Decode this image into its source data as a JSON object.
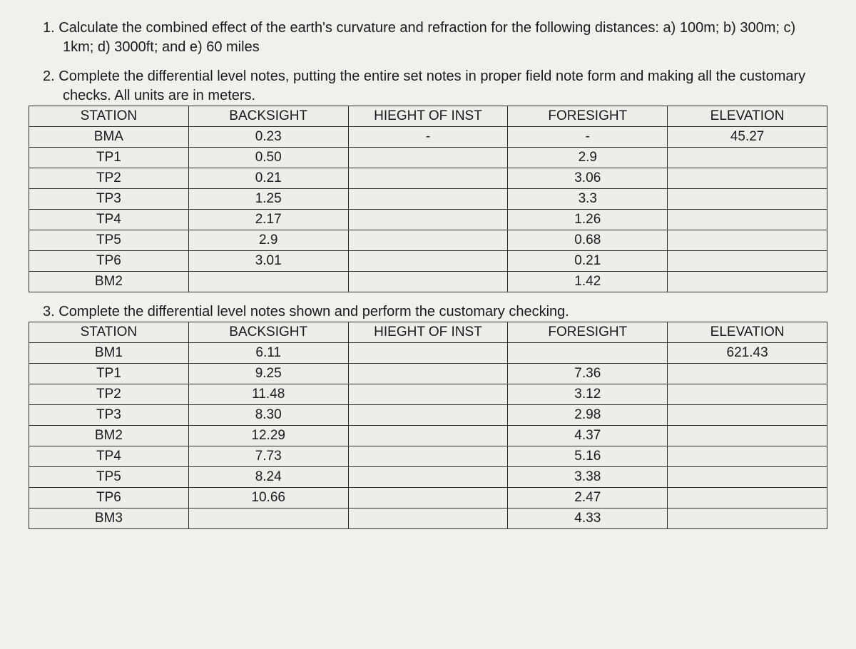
{
  "q1": {
    "num": "1.",
    "text": "Calculate the combined effect of the earth's curvature and refraction for the following distances: a) 100m; b) 300m; c) 1km; d) 3000ft; and e) 60 miles"
  },
  "q2": {
    "num": "2.",
    "text": "Complete the differential level notes, putting the entire set notes in proper field note form and making all the customary checks. All units are in meters."
  },
  "q3": {
    "num": "3.",
    "text": "Complete the differential level notes shown and perform the customary checking."
  },
  "headers": {
    "station": "STATION",
    "backsight": "BACKSIGHT",
    "hi": "HIEGHT OF INST",
    "foresight": "FORESIGHT",
    "elevation": "ELEVATION"
  },
  "table2": {
    "rows": [
      {
        "station": "BMA",
        "bs": "0.23",
        "hi": "-",
        "fs": "-",
        "el": "45.27"
      },
      {
        "station": "TP1",
        "bs": "0.50",
        "hi": "",
        "fs": "2.9",
        "el": ""
      },
      {
        "station": "TP2",
        "bs": "0.21",
        "hi": "",
        "fs": "3.06",
        "el": ""
      },
      {
        "station": "TP3",
        "bs": "1.25",
        "hi": "",
        "fs": "3.3",
        "el": ""
      },
      {
        "station": "TP4",
        "bs": "2.17",
        "hi": "",
        "fs": "1.26",
        "el": ""
      },
      {
        "station": "TP5",
        "bs": "2.9",
        "hi": "",
        "fs": "0.68",
        "el": ""
      },
      {
        "station": "TP6",
        "bs": "3.01",
        "hi": "",
        "fs": "0.21",
        "el": ""
      },
      {
        "station": "BM2",
        "bs": "",
        "hi": "",
        "fs": "1.42",
        "el": ""
      }
    ]
  },
  "table3": {
    "rows": [
      {
        "station": "BM1",
        "bs": "6.11",
        "hi": "",
        "fs": "",
        "el": "621.43"
      },
      {
        "station": "TP1",
        "bs": "9.25",
        "hi": "",
        "fs": "7.36",
        "el": ""
      },
      {
        "station": "TP2",
        "bs": "11.48",
        "hi": "",
        "fs": "3.12",
        "el": ""
      },
      {
        "station": "TP3",
        "bs": "8.30",
        "hi": "",
        "fs": "2.98",
        "el": ""
      },
      {
        "station": "BM2",
        "bs": "12.29",
        "hi": "",
        "fs": "4.37",
        "el": ""
      },
      {
        "station": "TP4",
        "bs": "7.73",
        "hi": "",
        "fs": "5.16",
        "el": ""
      },
      {
        "station": "TP5",
        "bs": "8.24",
        "hi": "",
        "fs": "3.38",
        "el": ""
      },
      {
        "station": "TP6",
        "bs": "10.66",
        "hi": "",
        "fs": "2.47",
        "el": ""
      },
      {
        "station": "BM3",
        "bs": "",
        "hi": "",
        "fs": "4.33",
        "el": ""
      }
    ]
  }
}
